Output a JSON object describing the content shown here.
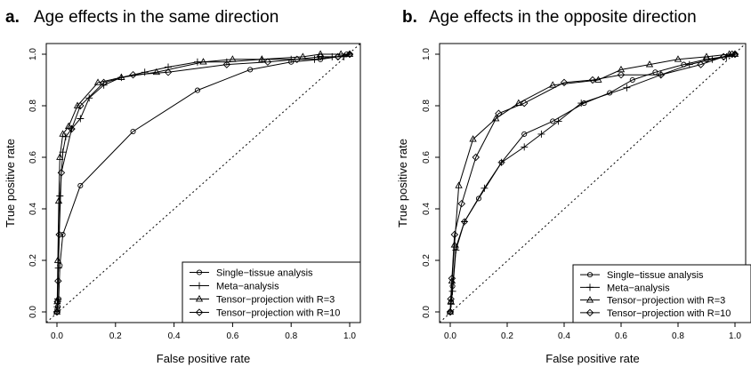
{
  "chart_data": [
    {
      "type": "line",
      "panel_letter": "a.",
      "title": "Age effects in the same direction",
      "xlabel": "False positive rate",
      "ylabel": "True positive rate",
      "xlim": [
        0,
        1
      ],
      "ylim": [
        0,
        1
      ],
      "xticks": [
        "0.0",
        "0.2",
        "0.4",
        "0.6",
        "0.8",
        "1.0"
      ],
      "yticks": [
        "0.0",
        "0.2",
        "0.4",
        "0.6",
        "0.8",
        "1.0"
      ],
      "reference_line": "diagonal y = x (dotted)",
      "grid": false,
      "legend_position": "bottom-right",
      "series": [
        {
          "name": "Single−tissue analysis",
          "marker": "circle",
          "x": [
            0,
            0.001,
            0.003,
            0.006,
            0.01,
            0.02,
            0.08,
            0.26,
            0.48,
            0.66,
            0.8,
            0.9,
            0.96,
            0.99,
            1.0
          ],
          "y": [
            0,
            0.01,
            0.02,
            0.05,
            0.18,
            0.3,
            0.49,
            0.7,
            0.86,
            0.94,
            0.97,
            0.98,
            0.99,
            1.0,
            1.0
          ]
        },
        {
          "name": "Meta−analysis",
          "marker": "plus",
          "x": [
            0,
            0.001,
            0.003,
            0.005,
            0.01,
            0.02,
            0.03,
            0.05,
            0.08,
            0.11,
            0.16,
            0.22,
            0.3,
            0.38,
            0.48,
            0.58,
            0.7,
            0.8,
            0.88,
            0.94,
            0.98,
            1.0
          ],
          "y": [
            0,
            0.02,
            0.05,
            0.17,
            0.45,
            0.62,
            0.68,
            0.71,
            0.75,
            0.83,
            0.88,
            0.91,
            0.93,
            0.95,
            0.97,
            0.97,
            0.98,
            0.98,
            0.98,
            0.99,
            0.99,
            1.0
          ]
        },
        {
          "name": "Tensor−projection with R=3",
          "marker": "triangle",
          "x": [
            0,
            0.001,
            0.003,
            0.006,
            0.01,
            0.02,
            0.04,
            0.07,
            0.14,
            0.22,
            0.34,
            0.5,
            0.6,
            0.7,
            0.84,
            0.9,
            0.97,
            1.0
          ],
          "y": [
            0,
            0.04,
            0.2,
            0.43,
            0.6,
            0.69,
            0.72,
            0.8,
            0.89,
            0.91,
            0.93,
            0.97,
            0.98,
            0.98,
            0.99,
            1.0,
            1.0,
            1.0
          ],
          "y_note": ""
        },
        {
          "name": "Tensor−projection with R=10",
          "marker": "diamond",
          "x": [
            0,
            0.002,
            0.004,
            0.008,
            0.015,
            0.05,
            0.08,
            0.16,
            0.26,
            0.38,
            0.58,
            0.72,
            0.82,
            0.9,
            0.96,
            1.0
          ],
          "y": [
            0,
            0.04,
            0.12,
            0.3,
            0.54,
            0.71,
            0.8,
            0.89,
            0.92,
            0.93,
            0.96,
            0.97,
            0.98,
            0.99,
            0.99,
            1.0
          ]
        }
      ]
    },
    {
      "type": "line",
      "panel_letter": "b.",
      "title": "Age effects in the opposite direction",
      "xlabel": "False positive rate",
      "ylabel": "True positive rate",
      "xlim": [
        0,
        1
      ],
      "ylim": [
        0,
        1
      ],
      "xticks": [
        "0.0",
        "0.2",
        "0.4",
        "0.6",
        "0.8",
        "1.0"
      ],
      "yticks": [
        "0.0",
        "0.2",
        "0.4",
        "0.6",
        "0.8",
        "1.0"
      ],
      "reference_line": "diagonal y = x (dotted)",
      "grid": false,
      "legend_position": "bottom-right",
      "series": [
        {
          "name": "Single−tissue analysis",
          "marker": "circle",
          "x": [
            0,
            0.003,
            0.008,
            0.02,
            0.05,
            0.1,
            0.18,
            0.26,
            0.36,
            0.47,
            0.56,
            0.64,
            0.72,
            0.82,
            0.9,
            0.96,
            1.0
          ],
          "y": [
            0,
            0.04,
            0.1,
            0.25,
            0.35,
            0.44,
            0.58,
            0.69,
            0.74,
            0.81,
            0.85,
            0.9,
            0.93,
            0.96,
            0.98,
            0.99,
            1.0
          ]
        },
        {
          "name": "Meta−analysis",
          "marker": "plus",
          "x": [
            0,
            0.003,
            0.008,
            0.02,
            0.05,
            0.12,
            0.18,
            0.26,
            0.32,
            0.38,
            0.46,
            0.62,
            0.74,
            0.84,
            0.92,
            0.97,
            1.0
          ],
          "y": [
            0,
            0.03,
            0.08,
            0.24,
            0.35,
            0.48,
            0.58,
            0.64,
            0.69,
            0.74,
            0.81,
            0.87,
            0.92,
            0.96,
            0.98,
            0.99,
            1.0
          ]
        },
        {
          "name": "Tensor−projection with R=3",
          "marker": "triangle",
          "x": [
            0,
            0.002,
            0.006,
            0.015,
            0.03,
            0.08,
            0.16,
            0.24,
            0.36,
            0.52,
            0.6,
            0.7,
            0.8,
            0.9,
            0.98,
            1.0
          ],
          "y": [
            0,
            0.04,
            0.12,
            0.26,
            0.49,
            0.67,
            0.75,
            0.81,
            0.88,
            0.9,
            0.94,
            0.96,
            0.98,
            0.99,
            1.0,
            1.0
          ]
        },
        {
          "name": "Tensor−projection with R=10",
          "marker": "diamond",
          "x": [
            0,
            0.002,
            0.006,
            0.015,
            0.04,
            0.09,
            0.17,
            0.26,
            0.4,
            0.5,
            0.6,
            0.74,
            0.88,
            0.96,
            0.99,
            1.0
          ],
          "y": [
            0,
            0.05,
            0.13,
            0.3,
            0.42,
            0.6,
            0.77,
            0.81,
            0.89,
            0.9,
            0.92,
            0.92,
            0.96,
            0.99,
            1.0,
            1.0
          ]
        }
      ]
    }
  ]
}
